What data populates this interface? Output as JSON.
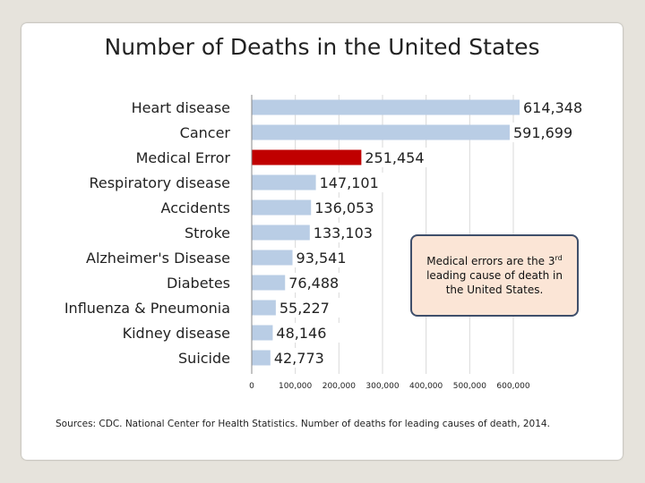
{
  "slide": {
    "title": "Number of Deaths in the United States",
    "callout": {
      "before": "Medical errors are the 3",
      "sup": "rd",
      "after": " leading cause of death in the United States."
    },
    "source": "Sources:  CDC. National Center for Health Statistics.  Number of deaths for leading causes of death, 2014."
  },
  "colors": {
    "bar": "#b9cde5",
    "highlight": "#c00000",
    "gridline": "#d9d9d9",
    "axis": "#888888"
  },
  "chart_data": {
    "type": "bar",
    "orientation": "horizontal",
    "title": "Number of Deaths in the United States",
    "categories": [
      "Heart disease",
      "Cancer",
      "Medical Error",
      "Respiratory disease",
      "Accidents",
      "Stroke",
      "Alzheimer's Disease",
      "Diabetes",
      "Influenza & Pneumonia",
      "Kidney disease",
      "Suicide"
    ],
    "values": [
      614348,
      591699,
      251454,
      147101,
      136053,
      133103,
      93541,
      76488,
      55227,
      48146,
      42773
    ],
    "value_labels": [
      "614,348",
      "591,699",
      "251,454",
      "147,101",
      "136,053",
      "133,103",
      "93,541",
      "76,488",
      "55,227",
      "48,146",
      "42,773"
    ],
    "highlight_category": "Medical Error",
    "xlim": [
      0,
      600000
    ],
    "xticks": [
      0,
      100000,
      200000,
      300000,
      400000,
      500000,
      600000
    ],
    "xtick_labels": [
      "0",
      "100,000",
      "200,000",
      "300,000",
      "400,000",
      "500,000",
      "600,000"
    ],
    "grid": true,
    "xlabel": "",
    "ylabel": ""
  }
}
